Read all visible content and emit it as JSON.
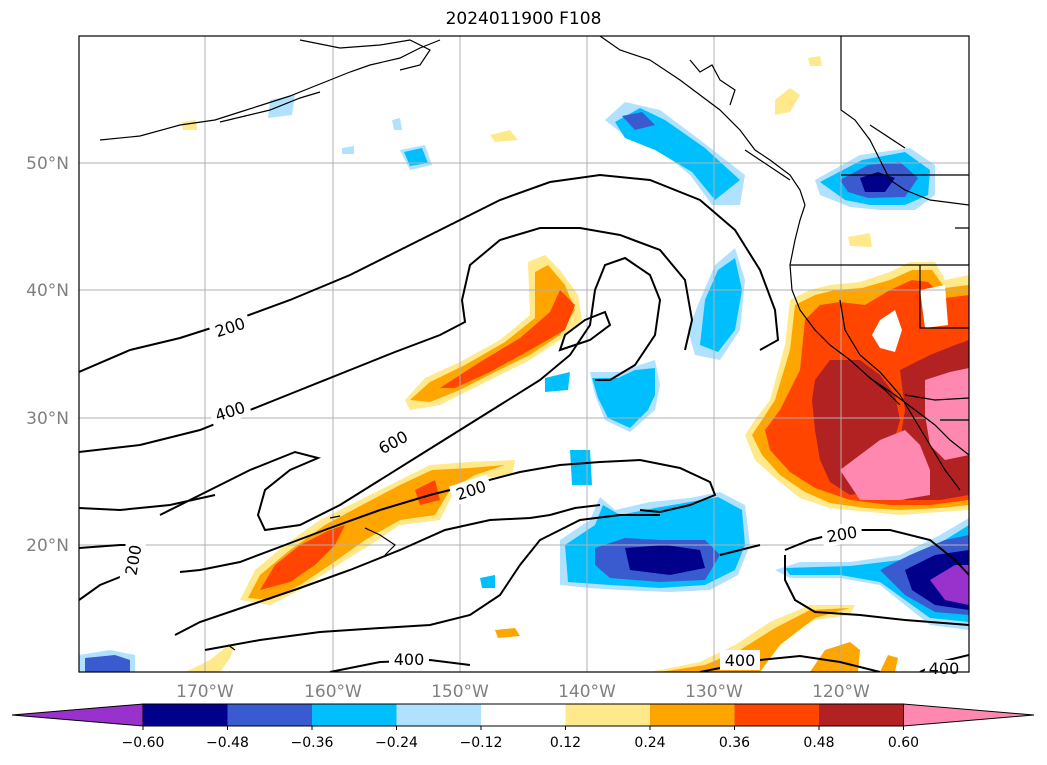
{
  "title": "2024011900 F108",
  "lat_labels": [
    "50°N",
    "40°N",
    "30°N",
    "20°N"
  ],
  "lon_labels": [
    "170°W",
    "160°W",
    "150°W",
    "140°W",
    "130°W",
    "120°W"
  ],
  "contour_levels": [
    "200",
    "400",
    "600"
  ],
  "contour_labels": [
    "200",
    "400",
    "600",
    "200",
    "200",
    "200",
    "400",
    "400",
    "400"
  ],
  "colorbar": {
    "ticks": [
      "−0.60",
      "−0.48",
      "−0.36",
      "−0.24",
      "−0.12",
      "0.12",
      "0.24",
      "0.36",
      "0.48",
      "0.60"
    ],
    "colors": [
      "#9932cc",
      "#00008b",
      "#3a5bd0",
      "#00bfff",
      "#b0e2ff",
      "#ffffff",
      "#ffe98a",
      "#ffa500",
      "#ff4500",
      "#b22222",
      "#ff88b0"
    ],
    "extend": "both"
  },
  "colors": {
    "neg1": "#9932cc",
    "neg2": "#00008b",
    "neg3": "#3a5bd0",
    "neg4": "#00bfff",
    "neg5": "#b0e2ff",
    "pos1": "#ffe98a",
    "pos2": "#ffa500",
    "pos3": "#ff4500",
    "pos4": "#b22222",
    "pos5": "#ff88b0",
    "grid": "#b0b0b0",
    "tick_labels": "#808080"
  }
}
